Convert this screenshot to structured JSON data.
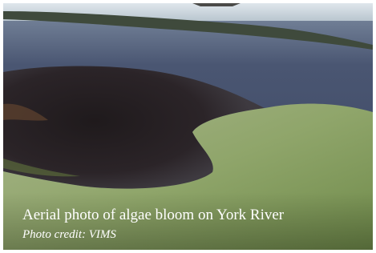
{
  "caption": {
    "title": "Aerial photo of algae bloom on York River",
    "credit": "Photo credit: VIMS"
  }
}
